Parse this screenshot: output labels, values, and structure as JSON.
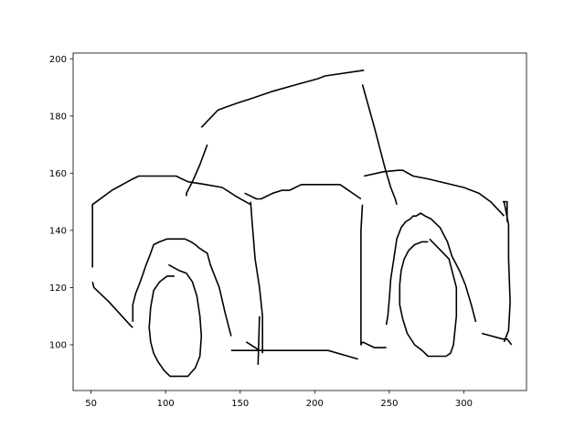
{
  "chart_data": {
    "type": "line",
    "title": "",
    "xlabel": "",
    "ylabel": "",
    "xlim": [
      38,
      342
    ],
    "ylim": [
      84,
      202
    ],
    "x_ticks": [
      50,
      100,
      150,
      200,
      250,
      300
    ],
    "y_ticks": [
      100,
      120,
      140,
      160,
      180,
      200
    ],
    "x_tick_labels": [
      "50",
      "100",
      "150",
      "200",
      "250",
      "300"
    ],
    "y_tick_labels": [
      "100",
      "120",
      "140",
      "160",
      "180",
      "200"
    ],
    "grid": false,
    "line_color": "#000000",
    "series": [
      {
        "x": [
          124,
          135,
          140,
          148,
          157,
          171,
          188,
          202,
          207,
          233
        ],
        "y": [
          176,
          182,
          183,
          184.5,
          186,
          188.5,
          191,
          193,
          194,
          196
        ]
      },
      {
        "x": [
          128,
          123,
          118,
          115,
          114,
          114
        ],
        "y": [
          170,
          163,
          157,
          154,
          153,
          152
        ]
      },
      {
        "x": [
          232,
          240,
          247,
          251,
          254,
          255
        ],
        "y": [
          191,
          176,
          162,
          155,
          151,
          149
        ]
      },
      {
        "x": [
          51,
          51,
          51,
          64,
          78,
          82,
          86,
          107,
          115,
          127,
          138,
          147,
          157
        ],
        "y": [
          127,
          140,
          149,
          154,
          158,
          159,
          159,
          159,
          157,
          156,
          155,
          152,
          149
        ]
      },
      {
        "x": [
          51,
          52,
          56,
          62,
          69,
          76,
          78
        ],
        "y": [
          122,
          120,
          118,
          115,
          111,
          107,
          106
        ]
      },
      {
        "x": [
          153,
          161,
          164,
          172,
          178,
          183,
          191,
          205,
          217,
          231
        ],
        "y": [
          153,
          151,
          151,
          153,
          154,
          154,
          156,
          156,
          156,
          151
        ]
      },
      {
        "x": [
          233,
          246,
          256,
          259,
          266,
          276,
          300,
          310,
          318,
          327
        ],
        "y": [
          159,
          160.5,
          161,
          161,
          159,
          158,
          155,
          153,
          150,
          145
        ]
      },
      {
        "x": [
          232,
          231,
          231,
          231,
          232
        ],
        "y": [
          149,
          140,
          120,
          100,
          101
        ]
      },
      {
        "x": [
          232,
          236,
          240,
          248
        ],
        "y": [
          101,
          100,
          99,
          99
        ]
      },
      {
        "x": [
          157,
          158,
          160,
          163,
          165,
          165
        ],
        "y": [
          150,
          143,
          130,
          120,
          110,
          97
        ]
      },
      {
        "x": [
          163,
          162
        ],
        "y": [
          110,
          93
        ]
      },
      {
        "x": [
          144,
          160,
          162
        ],
        "y": [
          98,
          98,
          98
        ]
      },
      {
        "x": [
          154,
          160,
          163,
          180,
          209,
          229
        ],
        "y": [
          101,
          99,
          98,
          98,
          98,
          95
        ]
      },
      {
        "x": [
          144,
          140,
          136,
          133,
          130,
          128,
          125,
          122,
          120,
          117,
          113,
          108,
          101,
          96,
          92,
          90,
          87,
          85,
          83,
          80,
          78,
          78
        ],
        "y": [
          103,
          111,
          120,
          124,
          128,
          132,
          133,
          134,
          135,
          136,
          137,
          137,
          137,
          136,
          135,
          132,
          128,
          125,
          122,
          118,
          114,
          108
        ]
      },
      {
        "x": [
          102,
          109,
          114,
          118,
          121,
          123,
          124,
          123,
          120,
          115,
          108,
          103,
          99,
          95,
          92,
          90,
          89,
          90,
          92,
          96,
          101,
          106
        ],
        "y": [
          128,
          126,
          125,
          122,
          117,
          110,
          103,
          96,
          92,
          89,
          89,
          89,
          91,
          94,
          97,
          101,
          106,
          113,
          119,
          122,
          124,
          124
        ]
      },
      {
        "x": [
          248,
          249,
          250,
          251,
          253,
          255,
          258,
          261,
          264,
          266,
          268,
          271,
          274,
          278,
          284,
          289,
          292,
          297,
          301,
          305,
          308
        ],
        "y": [
          107,
          110,
          116,
          123,
          130,
          137,
          141,
          143,
          144,
          145,
          145,
          146,
          145,
          144,
          141,
          136,
          131,
          126,
          121,
          114,
          108
        ]
      },
      {
        "x": [
          277,
          290,
          295,
          295,
          293,
          291,
          288,
          282,
          276,
          272,
          267,
          262,
          259,
          257,
          257,
          258,
          260,
          263,
          267,
          272,
          276
        ],
        "y": [
          137,
          130,
          120,
          110,
          100,
          97,
          96,
          96,
          96,
          98,
          100,
          104,
          109,
          114,
          121,
          126,
          130,
          133,
          135,
          136,
          136
        ]
      },
      {
        "x": [
          327,
          330,
          330,
          331,
          330,
          327
        ],
        "y": [
          150,
          142,
          130,
          115,
          105,
          101
        ]
      },
      {
        "x": [
          326,
          329,
          329
        ],
        "y": [
          150,
          150,
          143
        ]
      },
      {
        "x": [
          312,
          326,
          329,
          332
        ],
        "y": [
          104,
          102,
          102,
          100
        ]
      }
    ]
  }
}
